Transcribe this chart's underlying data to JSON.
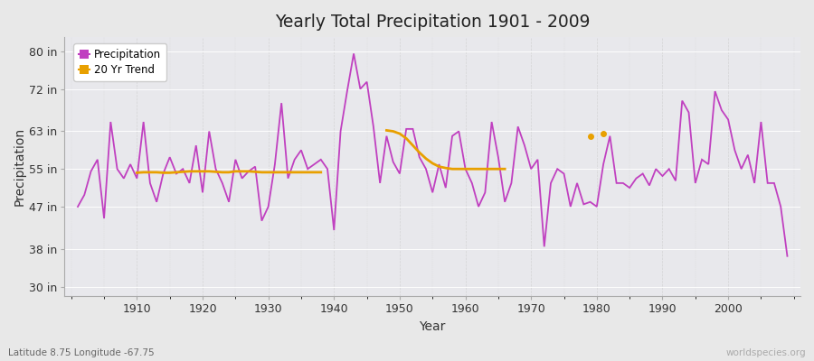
{
  "title": "Yearly Total Precipitation 1901 - 2009",
  "xlabel": "Year",
  "ylabel": "Precipitation",
  "subtitle": "Latitude 8.75 Longitude -67.75",
  "watermark": "worldspecies.org",
  "ylim": [
    28,
    83
  ],
  "yticks": [
    30,
    38,
    47,
    55,
    63,
    72,
    80
  ],
  "ytick_labels": [
    "30 in",
    "38 in",
    "47 in",
    "55 in",
    "63 in",
    "72 in",
    "80 in"
  ],
  "xlim": [
    1899,
    2011
  ],
  "xticks": [
    1910,
    1920,
    1930,
    1940,
    1950,
    1960,
    1970,
    1980,
    1990,
    2000
  ],
  "precip_color": "#c040c0",
  "trend_color": "#e8a000",
  "bg_color": "#e8e8e8",
  "plot_bg_color": "#e8e8ec",
  "years": [
    1901,
    1902,
    1903,
    1904,
    1905,
    1906,
    1907,
    1908,
    1909,
    1910,
    1911,
    1912,
    1913,
    1914,
    1915,
    1916,
    1917,
    1918,
    1919,
    1920,
    1921,
    1922,
    1923,
    1924,
    1925,
    1926,
    1927,
    1928,
    1929,
    1930,
    1931,
    1932,
    1933,
    1934,
    1935,
    1936,
    1937,
    1938,
    1939,
    1940,
    1941,
    1942,
    1943,
    1944,
    1945,
    1946,
    1947,
    1948,
    1949,
    1950,
    1951,
    1952,
    1953,
    1954,
    1955,
    1956,
    1957,
    1958,
    1959,
    1960,
    1961,
    1962,
    1963,
    1964,
    1965,
    1966,
    1967,
    1968,
    1969,
    1970,
    1971,
    1972,
    1973,
    1974,
    1975,
    1976,
    1977,
    1978,
    1979,
    1980,
    1981,
    1982,
    1983,
    1984,
    1985,
    1986,
    1987,
    1988,
    1989,
    1990,
    1991,
    1992,
    1993,
    1994,
    1995,
    1996,
    1997,
    1998,
    1999,
    2000,
    2001,
    2002,
    2003,
    2004,
    2005,
    2006,
    2007,
    2008,
    2009
  ],
  "precip": [
    47.0,
    49.5,
    54.5,
    57.0,
    44.5,
    65.0,
    55.0,
    53.0,
    56.0,
    53.0,
    65.0,
    52.0,
    48.0,
    54.0,
    57.5,
    54.0,
    55.0,
    52.0,
    60.0,
    50.0,
    63.0,
    55.0,
    52.0,
    48.0,
    57.0,
    53.0,
    54.5,
    55.5,
    44.0,
    47.0,
    56.0,
    69.0,
    53.0,
    57.0,
    59.0,
    55.0,
    56.0,
    57.0,
    55.0,
    42.0,
    63.0,
    71.5,
    79.5,
    72.0,
    73.5,
    64.0,
    52.0,
    62.0,
    56.5,
    54.0,
    63.5,
    63.5,
    57.5,
    55.0,
    50.0,
    56.0,
    51.0,
    62.0,
    63.0,
    55.0,
    52.0,
    47.0,
    50.0,
    65.0,
    57.5,
    48.0,
    52.0,
    64.0,
    60.0,
    55.0,
    57.0,
    38.5,
    52.0,
    55.0,
    54.0,
    47.0,
    52.0,
    47.5,
    48.0,
    47.0,
    56.0,
    62.0,
    52.0,
    52.0,
    51.0,
    53.0,
    54.0,
    51.5,
    55.0,
    53.5,
    55.0,
    52.5,
    69.5,
    67.0,
    52.0,
    57.0,
    56.0,
    71.5,
    67.5,
    65.5,
    59.0,
    55.0,
    58.0,
    52.0,
    65.0,
    52.0,
    52.0,
    47.0,
    36.5
  ],
  "trend_seg1_years": [
    1910,
    1911,
    1912,
    1913,
    1914,
    1915,
    1916,
    1917,
    1918,
    1919,
    1920,
    1921,
    1922,
    1923,
    1924,
    1925,
    1926,
    1927,
    1928,
    1929,
    1930,
    1931,
    1932,
    1933,
    1934,
    1935,
    1936,
    1937,
    1938
  ],
  "trend_seg1_vals": [
    54.2,
    54.3,
    54.3,
    54.3,
    54.2,
    54.2,
    54.3,
    54.4,
    54.5,
    54.5,
    54.5,
    54.5,
    54.4,
    54.3,
    54.3,
    54.5,
    54.5,
    54.5,
    54.4,
    54.3,
    54.3,
    54.3,
    54.3,
    54.3,
    54.3,
    54.3,
    54.3,
    54.3,
    54.3
  ],
  "trend_seg2_years": [
    1948,
    1949,
    1950,
    1951,
    1952,
    1953,
    1954,
    1955,
    1956,
    1957,
    1958,
    1959,
    1960,
    1961,
    1962,
    1963,
    1964,
    1965,
    1966
  ],
  "trend_seg2_vals": [
    63.2,
    63.0,
    62.5,
    61.5,
    60.0,
    58.5,
    57.2,
    56.2,
    55.5,
    55.2,
    55.0,
    55.0,
    55.0,
    55.0,
    55.0,
    55.0,
    55.0,
    55.0,
    55.0
  ],
  "trend_dot_year": 1979,
  "trend_dot_val": 62.0,
  "trend_dot2_year": 1981,
  "trend_dot2_val": 62.5
}
